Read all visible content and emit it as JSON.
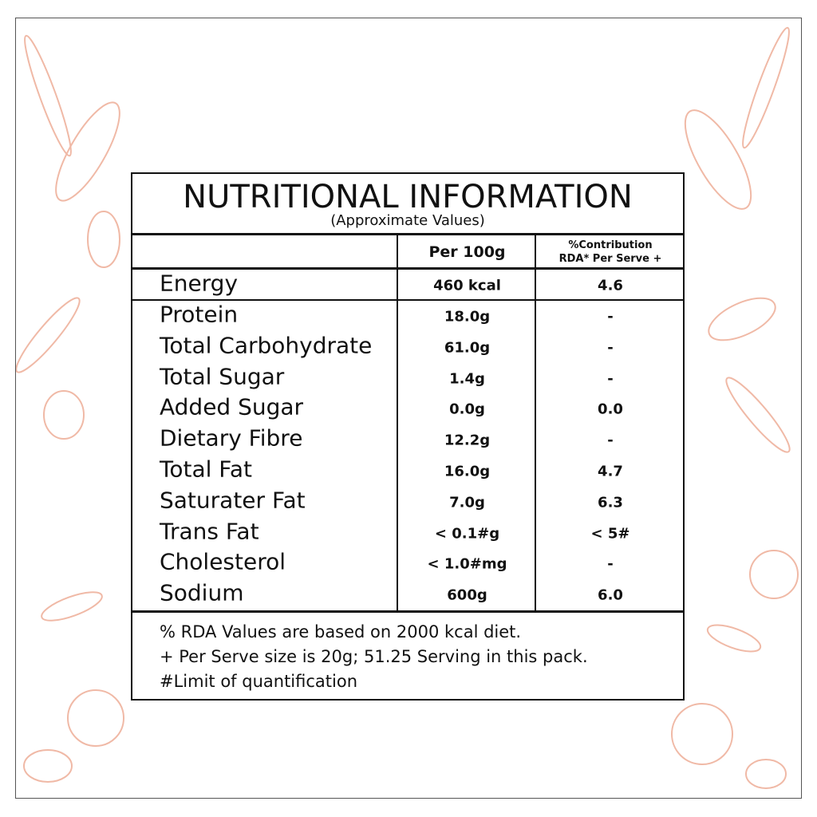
{
  "header": {
    "title": "NUTRITIONAL INFORMATION",
    "subtitle": "(Approximate Values)"
  },
  "table": {
    "columns": {
      "per_100g": "Per 100g",
      "rda": [
        "%Contribution",
        "RDA* Per Serve +"
      ]
    },
    "rows": [
      {
        "name": "Energy",
        "per_100g": "460 kcal",
        "rda": "4.6"
      },
      {
        "name": "Protein",
        "per_100g": "18.0g",
        "rda": "-"
      },
      {
        "name": "Total Carbohydrate",
        "per_100g": "61.0g",
        "rda": "-"
      },
      {
        "name": "Total Sugar",
        "per_100g": "1.4g",
        "rda": "-"
      },
      {
        "name": "Added Sugar",
        "per_100g": "0.0g",
        "rda": "0.0"
      },
      {
        "name": "Dietary Fibre",
        "per_100g": "12.2g",
        "rda": "-"
      },
      {
        "name": "Total Fat",
        "per_100g": "16.0g",
        "rda": "4.7"
      },
      {
        "name": "Saturater Fat",
        "per_100g": "7.0g",
        "rda": "6.3"
      },
      {
        "name": "Trans Fat",
        "per_100g": "< 0.1#g",
        "rda": "< 5#"
      },
      {
        "name": "Cholesterol",
        "per_100g": "< 1.0#mg",
        "rda": "-"
      },
      {
        "name": "Sodium",
        "per_100g": "600g",
        "rda": "6.0"
      }
    ]
  },
  "footnotes": [
    "% RDA Values are based on 2000 kcal diet.",
    "+ Per Serve size is 20g; 51.25 Serving in this pack.",
    "#Limit of quantification"
  ]
}
